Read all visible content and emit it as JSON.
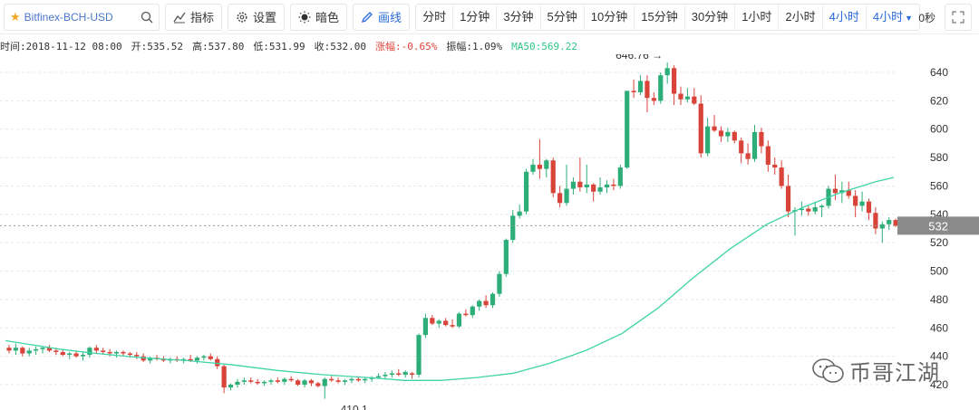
{
  "toolbar": {
    "symbol": "Bitfinex-BCH-USD",
    "indicator_label": "指标",
    "settings_label": "设置",
    "dark_label": "暗色",
    "draw_label": "画线",
    "periods": [
      "分时",
      "1分钟",
      "3分钟",
      "5分钟",
      "10分钟",
      "15分钟",
      "30分钟",
      "1小时",
      "2小时",
      "4小时",
      "4小时"
    ],
    "selected_period": "4小时",
    "seconds": "0秒"
  },
  "info": {
    "time": "时间:2018-11-12 08:00",
    "open": "开:535.52",
    "high": "高:537.80",
    "low": "低:531.99",
    "close": "收:532.00",
    "change": "涨幅:-0.65%",
    "amplitude": "振幅:1.09%",
    "ma": "MA50:569.22"
  },
  "watermark": "币哥江湖",
  "colors": {
    "up": "#2dae78",
    "down": "#d9443a",
    "ma": "#3fd4a8",
    "axis": "#333333",
    "grid": "#e8e8e8"
  },
  "chart_data": {
    "type": "candlestick",
    "y_ticks": [
      420,
      440,
      460,
      480,
      500,
      520,
      540,
      560,
      580,
      600,
      620,
      640
    ],
    "ylim": [
      410,
      650
    ],
    "last_price": "532",
    "max_label": "646.76",
    "min_label": "410.1",
    "candles": [
      [
        446,
        448,
        442,
        444
      ],
      [
        444,
        449,
        441,
        446
      ],
      [
        446,
        447,
        440,
        442
      ],
      [
        442,
        446,
        440,
        444
      ],
      [
        444,
        447,
        441,
        445
      ],
      [
        445,
        447,
        442,
        446
      ],
      [
        446,
        448,
        443,
        444
      ],
      [
        444,
        446,
        441,
        443
      ],
      [
        443,
        445,
        440,
        441
      ],
      [
        441,
        443,
        438,
        442
      ],
      [
        442,
        444,
        439,
        440
      ],
      [
        440,
        443,
        437,
        441
      ],
      [
        441,
        447,
        439,
        446
      ],
      [
        446,
        448,
        442,
        444
      ],
      [
        444,
        446,
        441,
        443
      ],
      [
        443,
        445,
        440,
        442
      ],
      [
        442,
        444,
        439,
        443
      ],
      [
        443,
        444,
        440,
        442
      ],
      [
        442,
        443,
        439,
        441
      ],
      [
        441,
        443,
        438,
        440
      ],
      [
        440,
        442,
        436,
        437
      ],
      [
        437,
        440,
        435,
        439
      ],
      [
        439,
        441,
        437,
        438
      ],
      [
        438,
        440,
        436,
        437
      ],
      [
        437,
        439,
        435,
        438
      ],
      [
        438,
        440,
        436,
        437
      ],
      [
        437,
        439,
        435,
        438
      ],
      [
        438,
        441,
        436,
        437
      ],
      [
        437,
        440,
        435,
        439
      ],
      [
        439,
        441,
        437,
        440
      ],
      [
        440,
        442,
        437,
        438
      ],
      [
        438,
        440,
        431,
        433
      ],
      [
        433,
        434,
        414,
        418
      ],
      [
        418,
        421,
        416,
        420
      ],
      [
        420,
        424,
        418,
        422
      ],
      [
        422,
        425,
        420,
        423
      ],
      [
        423,
        425,
        421,
        422
      ],
      [
        422,
        424,
        420,
        421
      ],
      [
        421,
        423,
        419,
        422
      ],
      [
        422,
        424,
        420,
        423
      ],
      [
        423,
        425,
        421,
        422
      ],
      [
        422,
        425,
        420,
        424
      ],
      [
        424,
        426,
        422,
        423
      ],
      [
        423,
        424,
        419,
        420
      ],
      [
        420,
        424,
        418,
        423
      ],
      [
        423,
        424,
        419,
        421
      ],
      [
        421,
        422,
        418,
        419
      ],
      [
        419,
        425,
        410,
        424
      ],
      [
        424,
        426,
        422,
        423
      ],
      [
        423,
        425,
        421,
        422
      ],
      [
        422,
        424,
        420,
        423
      ],
      [
        423,
        425,
        421,
        424
      ],
      [
        424,
        426,
        422,
        423
      ],
      [
        423,
        425,
        421,
        424
      ],
      [
        424,
        426,
        422,
        425
      ],
      [
        425,
        428,
        424,
        426
      ],
      [
        426,
        429,
        424,
        427
      ],
      [
        427,
        430,
        425,
        428
      ],
      [
        428,
        431,
        426,
        427
      ],
      [
        427,
        430,
        425,
        429
      ],
      [
        428,
        429,
        424,
        427
      ],
      [
        427,
        456,
        425,
        455
      ],
      [
        455,
        470,
        453,
        467
      ],
      [
        467,
        469,
        462,
        463
      ],
      [
        463,
        466,
        460,
        465
      ],
      [
        465,
        467,
        461,
        462
      ],
      [
        462,
        466,
        460,
        461
      ],
      [
        461,
        471,
        460,
        470
      ],
      [
        470,
        473,
        468,
        469
      ],
      [
        469,
        476,
        467,
        475
      ],
      [
        475,
        480,
        472,
        479
      ],
      [
        479,
        483,
        474,
        476
      ],
      [
        476,
        485,
        474,
        484
      ],
      [
        484,
        500,
        482,
        498
      ],
      [
        498,
        523,
        496,
        522
      ],
      [
        522,
        543,
        520,
        539
      ],
      [
        539,
        547,
        537,
        542
      ],
      [
        542,
        572,
        540,
        570
      ],
      [
        570,
        579,
        568,
        575
      ],
      [
        575,
        593,
        565,
        572
      ],
      [
        572,
        579,
        566,
        578
      ],
      [
        578,
        580,
        552,
        555
      ],
      [
        555,
        560,
        545,
        548
      ],
      [
        548,
        575,
        546,
        558
      ],
      [
        558,
        566,
        554,
        563
      ],
      [
        563,
        580,
        556,
        559
      ],
      [
        559,
        575,
        555,
        561
      ],
      [
        561,
        562,
        549,
        556
      ],
      [
        556,
        566,
        554,
        559
      ],
      [
        559,
        564,
        555,
        561
      ],
      [
        561,
        565,
        557,
        560
      ],
      [
        560,
        575,
        558,
        573
      ],
      [
        573,
        627,
        572,
        627
      ],
      [
        627,
        635,
        622,
        626
      ],
      [
        626,
        638,
        624,
        634
      ],
      [
        634,
        638,
        612,
        622
      ],
      [
        622,
        626,
        617,
        620
      ],
      [
        620,
        640,
        618,
        638
      ],
      [
        638,
        647,
        632,
        643
      ],
      [
        643,
        645,
        617,
        625
      ],
      [
        625,
        630,
        617,
        621
      ],
      [
        621,
        629,
        619,
        623
      ],
      [
        623,
        629,
        617,
        618
      ],
      [
        618,
        624,
        580,
        583
      ],
      [
        583,
        608,
        581,
        602
      ],
      [
        602,
        610,
        598,
        599
      ],
      [
        599,
        602,
        591,
        595
      ],
      [
        595,
        601,
        591,
        598
      ],
      [
        598,
        599,
        590,
        592
      ],
      [
        592,
        594,
        576,
        583
      ],
      [
        583,
        590,
        575,
        579
      ],
      [
        579,
        603,
        577,
        598
      ],
      [
        598,
        601,
        583,
        588
      ],
      [
        588,
        592,
        570,
        575
      ],
      [
        575,
        580,
        568,
        573
      ],
      [
        573,
        578,
        558,
        560
      ],
      [
        560,
        568,
        538,
        542
      ],
      [
        542,
        545,
        525,
        543
      ],
      [
        543,
        549,
        539,
        544
      ],
      [
        544,
        546,
        539,
        542
      ],
      [
        542,
        549,
        540,
        545
      ],
      [
        545,
        547,
        538,
        546
      ],
      [
        546,
        560,
        544,
        558
      ],
      [
        558,
        568,
        550,
        555
      ],
      [
        555,
        563,
        548,
        557
      ],
      [
        557,
        563,
        551,
        553
      ],
      [
        553,
        557,
        538,
        546
      ],
      [
        546,
        556,
        542,
        549
      ],
      [
        549,
        551,
        536,
        541
      ],
      [
        541,
        545,
        526,
        530
      ],
      [
        530,
        535,
        520,
        533
      ],
      [
        533,
        538,
        529,
        536
      ],
      [
        536,
        537,
        531,
        532
      ]
    ],
    "ma50": [
      [
        0,
        451
      ],
      [
        30,
        448
      ],
      [
        60,
        445
      ],
      [
        100,
        442
      ],
      [
        150,
        439
      ],
      [
        200,
        437
      ],
      [
        250,
        434
      ],
      [
        300,
        430
      ],
      [
        350,
        427
      ],
      [
        400,
        425
      ],
      [
        440,
        423
      ],
      [
        480,
        423
      ],
      [
        520,
        425
      ],
      [
        560,
        428
      ],
      [
        600,
        435
      ],
      [
        640,
        444
      ],
      [
        680,
        456
      ],
      [
        720,
        474
      ],
      [
        760,
        496
      ],
      [
        800,
        516
      ],
      [
        840,
        533
      ],
      [
        880,
        545
      ],
      [
        920,
        555
      ],
      [
        960,
        563
      ],
      [
        980,
        566
      ]
    ]
  }
}
